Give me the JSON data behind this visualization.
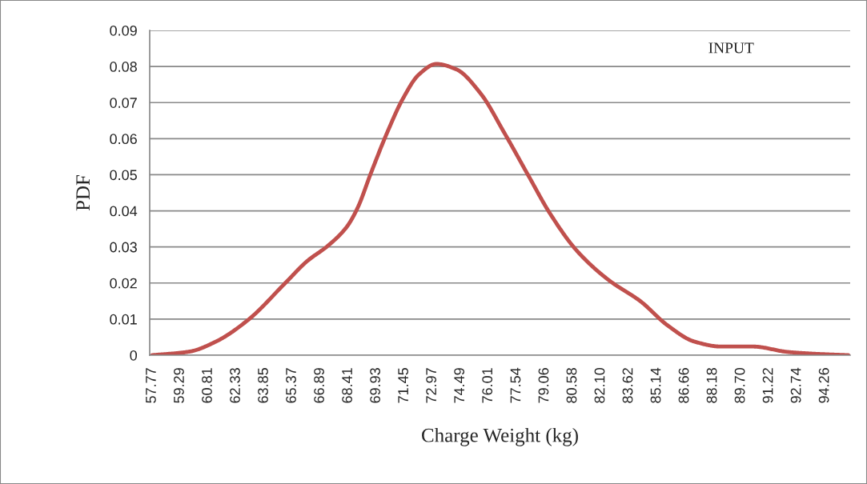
{
  "chart_data": {
    "type": "line",
    "xlabel": "Charge Weight (kg)",
    "ylabel": "PDF",
    "annotations": [
      "INPUT"
    ],
    "x": [
      57.77,
      59.8,
      61.24,
      62.98,
      65.01,
      66.16,
      67.32,
      68.33,
      68.91,
      69.63,
      70.5,
      71.37,
      72.24,
      73.18,
      74.27,
      75.57,
      76.88,
      78.18,
      79.34,
      80.79,
      82.53,
      84.26,
      85.71,
      87.16,
      88.61,
      90.34,
      92.23,
      93.67,
      95.52
    ],
    "series": [
      {
        "color": "#c0504d",
        "values": [
          0.0,
          0.001,
          0.0038,
          0.0098,
          0.0201,
          0.026,
          0.0304,
          0.0356,
          0.0408,
          0.0504,
          0.0615,
          0.0711,
          0.0778,
          0.0807,
          0.0792,
          0.0726,
          0.0615,
          0.0497,
          0.0393,
          0.029,
          0.0208,
          0.0149,
          0.0083,
          0.0038,
          0.0024,
          0.0024,
          0.0009,
          0.0004,
          0.0
        ]
      }
    ],
    "xlim": [
      57.64,
      95.62
    ],
    "xticks": [
      57.77,
      59.29,
      60.81,
      62.33,
      63.85,
      65.37,
      66.89,
      68.41,
      69.93,
      71.45,
      72.97,
      74.49,
      76.01,
      77.54,
      79.06,
      80.58,
      {
        "value": 82.1,
        "label": "82.10"
      },
      83.62,
      85.14,
      86.66,
      88.18,
      {
        "value": 89.7,
        "label": "89.70"
      },
      91.22,
      92.74,
      94.26
    ],
    "ylim": [
      0,
      0.09
    ],
    "yticks": [
      {
        "value": 0,
        "label": "0"
      },
      0.01,
      0.02,
      0.03,
      0.04,
      0.05,
      0.06,
      0.07,
      0.08,
      0.09
    ],
    "grid": "y",
    "marker": "none",
    "line_style": "solid"
  }
}
